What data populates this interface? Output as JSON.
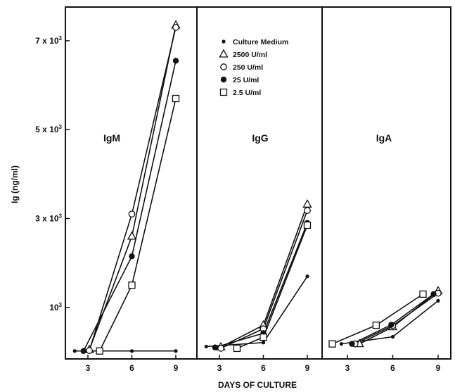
{
  "chart_data": {
    "type": "line",
    "ylabel": "Ig (ng/ml)",
    "xlabel": "DAYS OF CULTURE",
    "ylim": [
      0,
      7600
    ],
    "yticks": [
      {
        "value": 1000,
        "base": "10",
        "exp": "3"
      },
      {
        "value": 3000,
        "base": "3 x 10",
        "exp": "3"
      },
      {
        "value": 5000,
        "base": "5 x 10",
        "exp": "3"
      },
      {
        "value": 7000,
        "base": "7 x 10",
        "exp": "3"
      }
    ],
    "xticks": [
      "3",
      "6",
      "9"
    ],
    "legend": [
      {
        "name": "Culture Medium",
        "marker": "dot"
      },
      {
        "name": "2500 U/ml",
        "marker": "triangle"
      },
      {
        "name": "250 U/ml",
        "marker": "open-circle"
      },
      {
        "name": "25 U/ml",
        "marker": "filled-circle"
      },
      {
        "name": "2.5 U/ml",
        "marker": "square"
      }
    ],
    "panels": [
      {
        "label": "IgM",
        "series": [
          {
            "marker": "dot",
            "points": [
              [
                2.1,
                20
              ],
              [
                6,
                20
              ],
              [
                9,
                20
              ]
            ]
          },
          {
            "marker": "triangle",
            "points": [
              [
                3.1,
                50
              ],
              [
                6,
                2600
              ],
              [
                9,
                7350
              ]
            ]
          },
          {
            "marker": "open-circle",
            "points": [
              [
                3.1,
                30
              ],
              [
                6,
                3100
              ],
              [
                9,
                7300
              ]
            ]
          },
          {
            "marker": "filled-circle",
            "points": [
              [
                2.7,
                20
              ],
              [
                6,
                2150
              ],
              [
                9,
                6550
              ]
            ]
          },
          {
            "marker": "square",
            "points": [
              [
                3.8,
                20
              ],
              [
                6,
                1500
              ],
              [
                9,
                5700
              ]
            ]
          }
        ]
      },
      {
        "label": "IgG",
        "series": [
          {
            "marker": "dot",
            "points": [
              [
                2.1,
                120
              ],
              [
                6,
                210
              ],
              [
                9,
                1700
              ]
            ]
          },
          {
            "marker": "triangle",
            "points": [
              [
                3.1,
                110
              ],
              [
                6,
                600
              ],
              [
                9,
                3320
              ]
            ]
          },
          {
            "marker": "open-circle",
            "points": [
              [
                3.1,
                80
              ],
              [
                6,
                520
              ],
              [
                9,
                3180
              ]
            ]
          },
          {
            "marker": "filled-circle",
            "points": [
              [
                2.7,
                100
              ],
              [
                6,
                420
              ],
              [
                9,
                2900
              ]
            ]
          },
          {
            "marker": "square",
            "points": [
              [
                4.2,
                80
              ],
              [
                6,
                330
              ],
              [
                9,
                2850
              ]
            ]
          }
        ]
      },
      {
        "label": "IgA",
        "series": [
          {
            "marker": "dot",
            "points": [
              [
                2.6,
                180
              ],
              [
                6,
                340
              ],
              [
                9,
                1150
              ]
            ]
          },
          {
            "marker": "triangle",
            "points": [
              [
                3.8,
                180
              ],
              [
                6,
                560
              ],
              [
                9,
                1370
              ]
            ]
          },
          {
            "marker": "open-circle",
            "points": [
              [
                3.5,
                180
              ],
              [
                6,
                590
              ],
              [
                9,
                1320
              ]
            ]
          },
          {
            "marker": "filled-circle",
            "points": [
              [
                3.3,
                180
              ],
              [
                5.9,
                610
              ],
              [
                8.7,
                1300
              ]
            ]
          },
          {
            "marker": "square",
            "points": [
              [
                2.0,
                180
              ],
              [
                4.9,
                600
              ],
              [
                8,
                1300
              ]
            ]
          }
        ]
      }
    ]
  }
}
